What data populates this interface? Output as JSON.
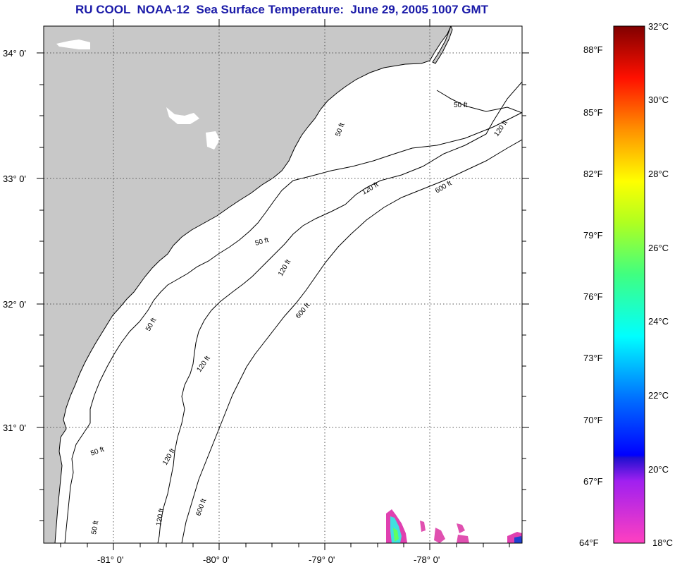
{
  "title": "RU COOL  NOAA-12  Sea Surface Temperature:  June 29, 2005 1007 GMT",
  "map": {
    "lat_labels": [
      "34° 0'",
      "33° 0'",
      "32° 0'",
      "31° 0'"
    ],
    "lon_labels": [
      "-81° 0'",
      "-80° 0'",
      "-79° 0'",
      "-78° 0'"
    ],
    "contour_labels": {
      "c50": "50 ft",
      "c120": "120 ft",
      "c600": "600 ft"
    },
    "land_color": "#c8c8c8",
    "ocean_color": "#ffffff"
  },
  "colorbar": {
    "fahrenheit": [
      "88°F",
      "85°F",
      "82°F",
      "79°F",
      "76°F",
      "73°F",
      "70°F",
      "67°F",
      "64°F"
    ],
    "celsius": [
      "32°C",
      "30°C",
      "28°C",
      "26°C",
      "24°C",
      "22°C",
      "20°C",
      "18°C"
    ]
  }
}
